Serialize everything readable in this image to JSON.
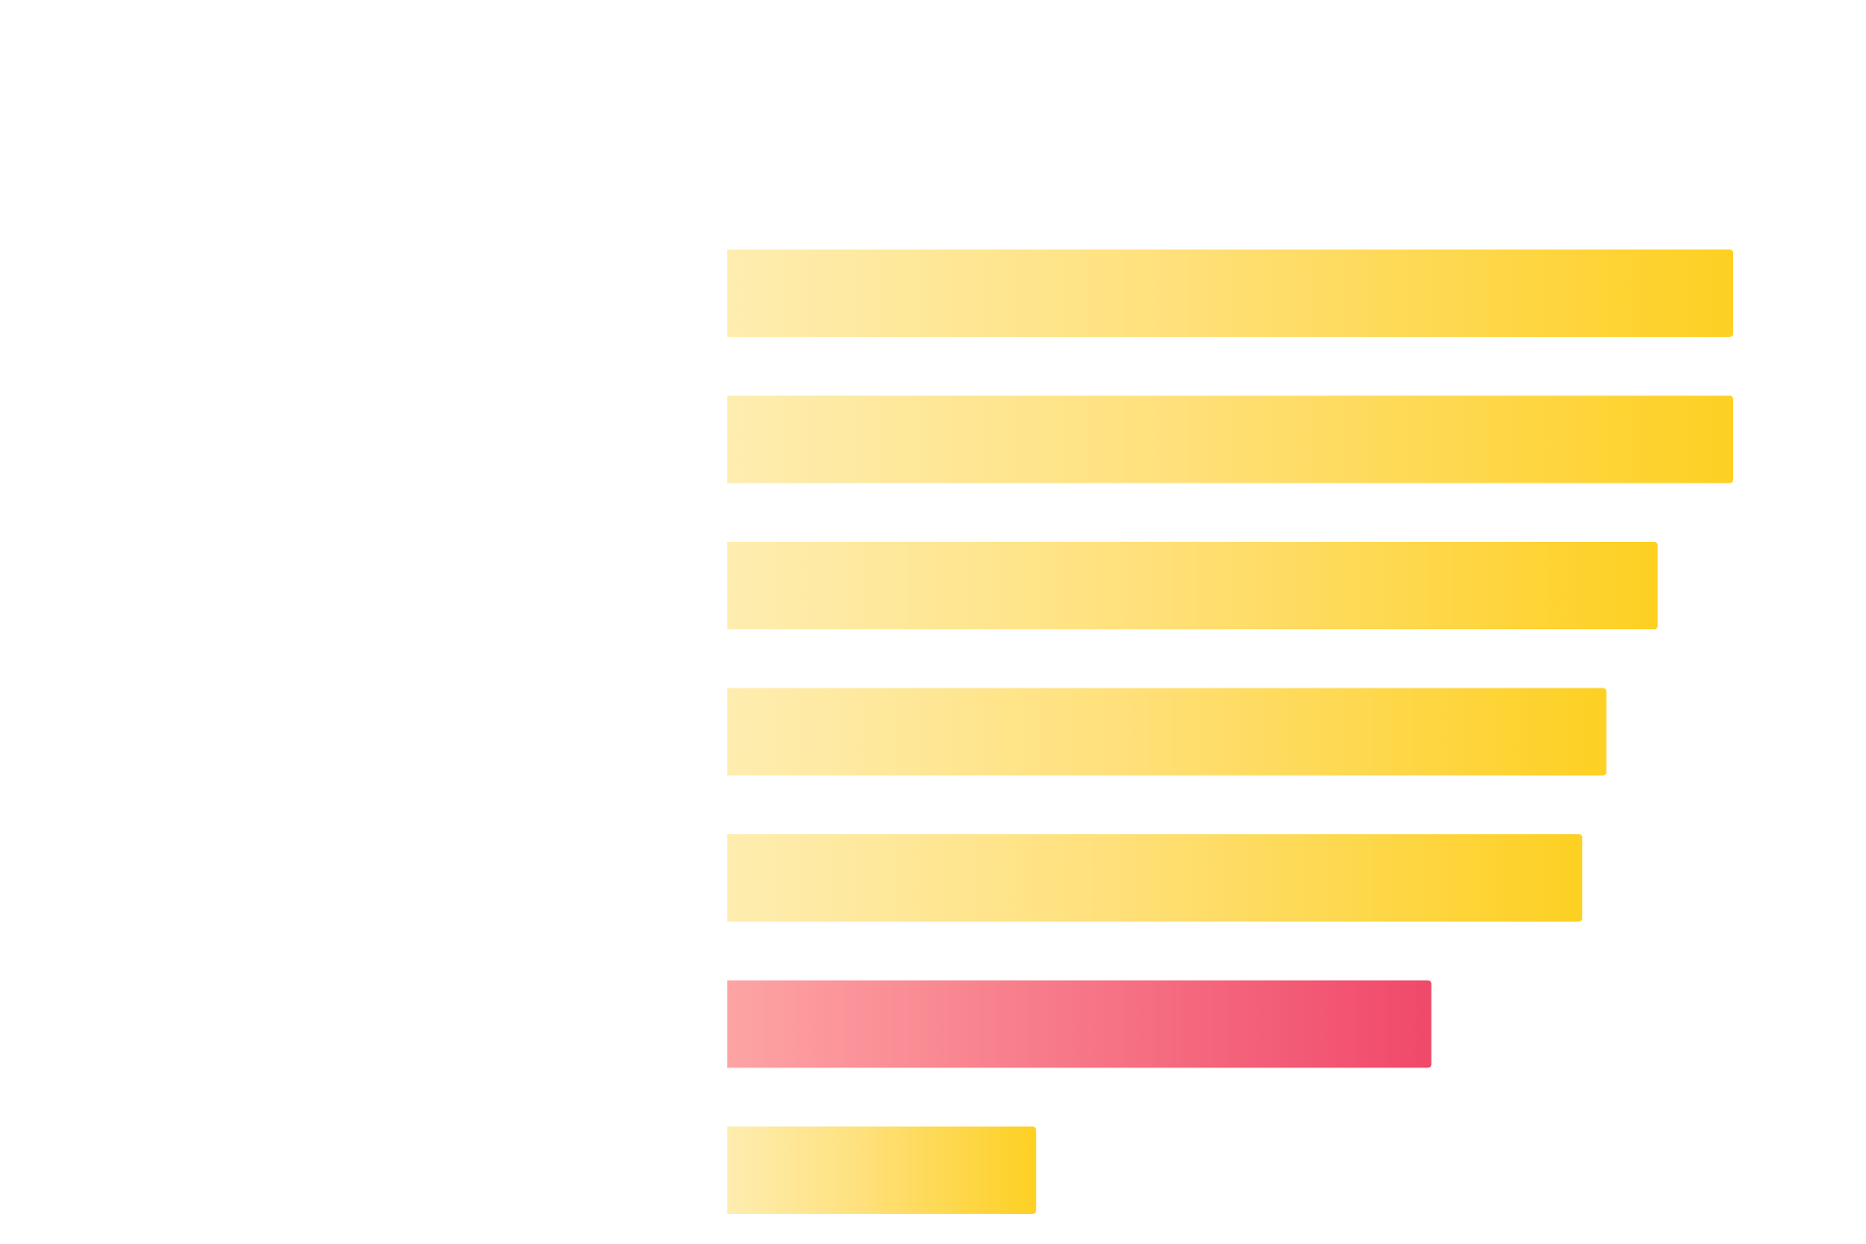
{
  "colors": {
    "background": "#ffffff",
    "default_bar_light": "#FEEDB0",
    "default_bar_mid": "#FFE07A",
    "default_bar_dark": "#FDD022",
    "highlight_bar_light": "#FDA4A4",
    "highlight_bar_dark": "#F0496A"
  },
  "chart_data": {
    "type": "bar",
    "orientation": "horizontal",
    "categories": [
      "",
      "",
      "",
      "",
      "",
      "",
      ""
    ],
    "values": [
      100,
      100,
      92.5,
      87.4,
      85,
      70,
      30.7
    ],
    "highlight_index": 5,
    "xlim": [
      0,
      100
    ],
    "grid": false,
    "title": "",
    "xlabel": "",
    "ylabel": ""
  }
}
